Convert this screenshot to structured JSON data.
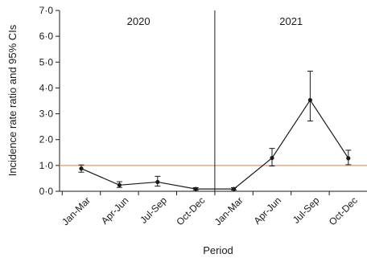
{
  "chart_data": {
    "type": "line",
    "ylabel": "Incidence rate ratio and 95% CIs",
    "xlabel": "Period",
    "ylim": [
      0,
      7
    ],
    "y_ticks": [
      "0·0",
      "1·0",
      "2·0",
      "3·0",
      "4·0",
      "5·0",
      "6·0",
      "7·0"
    ],
    "grid": false,
    "groups": [
      {
        "label": "2020",
        "categories": [
          "Jan-Mar",
          "Apr-Jun",
          "Jul-Sep",
          "Oct-Dec"
        ]
      },
      {
        "label": "2021",
        "categories": [
          "Jan-Mar",
          "Apr-Jun",
          "Jul-Sep",
          "Oct-Dec"
        ]
      }
    ],
    "series": [
      {
        "values": [
          0.88,
          0.24,
          0.36,
          0.09,
          0.09,
          1.29,
          3.53,
          1.28
        ],
        "ci_lower": [
          0.74,
          0.15,
          0.2,
          0.05,
          0.05,
          0.98,
          2.72,
          1.03
        ],
        "ci_upper": [
          1.02,
          0.37,
          0.58,
          0.14,
          0.14,
          1.66,
          4.65,
          1.59
        ]
      }
    ],
    "reference_line": {
      "y": 1.0,
      "color": "#f4a582"
    },
    "divider_between_groups": true,
    "colors": {
      "line": "#1a1a1a",
      "axis": "#1a1a1a"
    }
  }
}
